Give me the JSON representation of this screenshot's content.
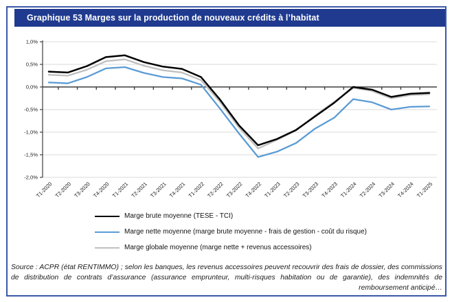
{
  "title": "Graphique 53 Marges sur la production de nouveaux crédits à l’habitat",
  "chart_data": {
    "type": "line",
    "categories": [
      "T1-2020",
      "T2-2020",
      "T3-2020",
      "T4-2020",
      "T1-2021",
      "T2-2021",
      "T3-2021",
      "T4-2021",
      "T1-2022",
      "T2-2022",
      "T3-2022",
      "T4-2022",
      "T1-2023",
      "T2-2023",
      "T3-2023",
      "T4-2023",
      "T1-2024",
      "T2-2024",
      "T3-2024",
      "T4-2024",
      "T1-2025"
    ],
    "series": [
      {
        "name": "Marge brute moyenne (TESE - TCI)",
        "color": "#000000",
        "width": 2.5,
        "values": [
          0.34,
          0.32,
          0.46,
          0.66,
          0.7,
          0.55,
          0.45,
          0.4,
          0.22,
          -0.28,
          -0.85,
          -1.29,
          -1.15,
          -0.95,
          -0.65,
          -0.35,
          0.0,
          -0.06,
          -0.22,
          -0.15,
          -0.13
        ]
      },
      {
        "name": "Marge nette moyenne (marge brute moyenne - frais de gestion - coût du risque)",
        "color": "#5B9BD5",
        "width": 2.3,
        "values": [
          0.1,
          0.08,
          0.22,
          0.41,
          0.44,
          0.31,
          0.22,
          0.19,
          0.05,
          -0.48,
          -1.03,
          -1.55,
          -1.43,
          -1.24,
          -0.92,
          -0.68,
          -0.27,
          -0.34,
          -0.5,
          -0.44,
          -0.43
        ]
      },
      {
        "name": "Marge globale moyenne (marge nette + revenus accessoires)",
        "color": "#BFBFBF",
        "width": 2.3,
        "values": [
          0.27,
          0.25,
          0.38,
          0.57,
          0.61,
          0.47,
          0.37,
          0.32,
          0.15,
          -0.33,
          -0.9,
          -1.36,
          -1.17,
          -0.96,
          -0.63,
          -0.33,
          -0.02,
          -0.09,
          -0.25,
          -0.18,
          -0.16
        ]
      }
    ],
    "title": "Graphique 53 Marges sur la production de nouveaux crédits à l’habitat",
    "xlabel": "",
    "ylabel": "",
    "ylim": [
      -2.0,
      1.0
    ],
    "yticks": [
      1.0,
      0.5,
      0.0,
      -0.5,
      -1.0,
      -1.5,
      -2.0
    ],
    "ytick_labels": [
      "1,0%",
      "0,5%",
      "0,0%",
      "-0,5%",
      "-1,0%",
      "-1,5%",
      "-2,0%"
    ],
    "grid": true,
    "legend_position": "bottom"
  },
  "source_note": "Source : ACPR (état RENTIMMO) ; selon les banques, les revenus accessoires peuvent recouvrir des frais de dossier, des commissions de distribution de contrats d’assurance (assurance emprunteur, multi-risques habitation ou de garantie), des indemnités de remboursement anticipé…",
  "colors": {
    "title_bar_bg": "#1F3A8F",
    "title_text": "#FFFFFF",
    "frame_border": "#3A57A8",
    "gridline": "#D9D9D9",
    "axis": "#3d3d3d",
    "series_brute": "#000000",
    "series_nette": "#5B9BD5",
    "series_globale": "#BFBFBF"
  }
}
